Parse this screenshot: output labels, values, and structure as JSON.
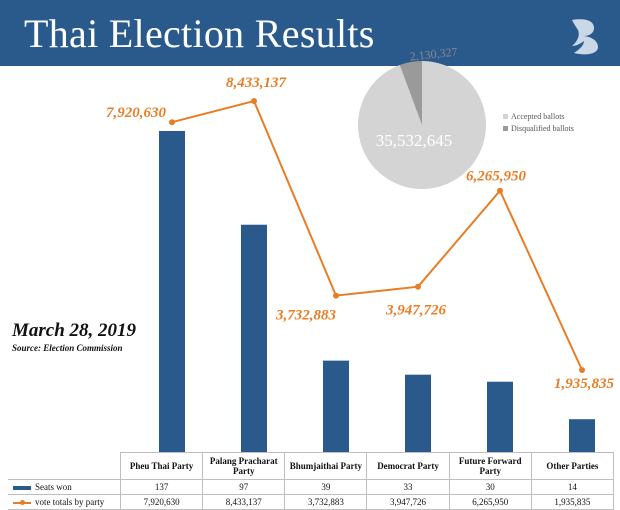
{
  "title": "Thai Election Results",
  "date": "March 28, 2019",
  "source": "Source: Election Commission",
  "colors": {
    "header": "#2a5a8c",
    "bars": "#2a5a8c",
    "line": "#e87d25",
    "pie_accepted": "#d4d4d4",
    "pie_disqualified": "#9a9a9a"
  },
  "table": {
    "seats_label": "Seats won",
    "votes_label": "vote totals by party"
  },
  "chart_data": [
    {
      "type": "bar",
      "categories": [
        "Pheu Thai Party",
        "Palang Pracharat Party",
        "Bhumjaithai Party",
        "Democrat Party",
        "Future Forward Party",
        "Other Parties"
      ],
      "series": [
        {
          "name": "Seats won",
          "type": "bar",
          "values": [
            137,
            97,
            39,
            33,
            30,
            14
          ],
          "value_labels": [
            "137",
            "97",
            "39",
            "33",
            "30",
            "14"
          ]
        },
        {
          "name": "vote totals by party",
          "type": "line",
          "values": [
            7920630,
            8433137,
            3732883,
            3947726,
            6265950,
            1935835
          ],
          "value_labels": [
            "7,920,630",
            "8,433,137",
            "3,732,883",
            "3,947,726",
            "6,265,950",
            "1,935,835"
          ]
        }
      ],
      "legend": "table-bottom",
      "grid": false
    },
    {
      "type": "pie",
      "slices": [
        {
          "name": "Accepted ballots",
          "value": 35532645,
          "label": "35,532,645"
        },
        {
          "name": "Disqualified ballots",
          "value": 2130327,
          "label": "2,130,327"
        }
      ],
      "legend": "right"
    }
  ]
}
